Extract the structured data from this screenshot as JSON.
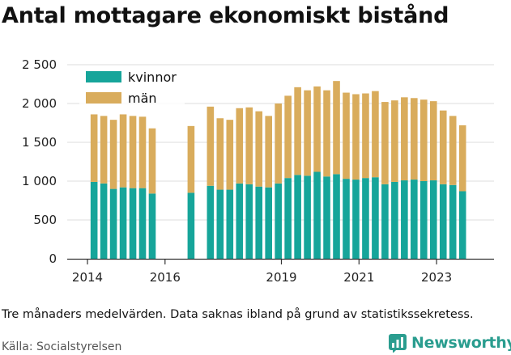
{
  "title": "Antal mottagare ekonomiskt bistånd",
  "note": "Tre månaders medelvärden. Data saknas ibland på grund av statistikssekretess.",
  "source": "Källa: Socialstyrelsen",
  "brand": "Newsworthy",
  "colors": {
    "kvinnor": "#16a59a",
    "man": "#d9ac5c",
    "axis": "#333333",
    "grid": "#dddddd"
  },
  "chart_data": {
    "type": "bar",
    "stacked": true,
    "title": "Antal mottagare ekonomiskt bistånd",
    "xlabel": "",
    "ylabel": "",
    "ylim": [
      0,
      2500
    ],
    "yticks": [
      0,
      500,
      1000,
      1500,
      2000,
      2500
    ],
    "ytick_labels": [
      "0",
      "500",
      "1 000",
      "1 500",
      "2 000",
      "2 500"
    ],
    "xticks": [
      2014,
      2016,
      2019,
      2021,
      2023
    ],
    "legend_position": "top-left",
    "x": [
      2014.17,
      2014.42,
      2014.67,
      2014.92,
      2015.17,
      2015.42,
      2015.67,
      2015.92,
      2016.17,
      2016.42,
      2016.67,
      2016.92,
      2017.17,
      2017.42,
      2017.67,
      2017.92,
      2018.17,
      2018.42,
      2018.67,
      2018.92,
      2019.17,
      2019.42,
      2019.67,
      2019.92,
      2020.17,
      2020.42,
      2020.67,
      2020.92,
      2021.17,
      2021.42,
      2021.67,
      2021.92,
      2022.17,
      2022.42,
      2022.67,
      2022.92,
      2023.17,
      2023.42,
      2023.67,
      2023.92
    ],
    "series": [
      {
        "name": "kvinnor",
        "values": [
          990,
          970,
          900,
          920,
          910,
          910,
          840,
          null,
          null,
          null,
          850,
          null,
          940,
          890,
          890,
          970,
          960,
          930,
          920,
          970,
          1040,
          1080,
          1070,
          1120,
          1060,
          1090,
          1030,
          1020,
          1040,
          1050,
          960,
          990,
          1010,
          1020,
          1000,
          1010,
          960,
          950,
          870,
          null
        ]
      },
      {
        "name": "män",
        "values": [
          870,
          870,
          890,
          940,
          930,
          920,
          840,
          null,
          null,
          null,
          860,
          null,
          1020,
          920,
          900,
          970,
          990,
          970,
          920,
          1030,
          1060,
          1130,
          1100,
          1100,
          1110,
          1200,
          1110,
          1100,
          1090,
          1110,
          1060,
          1050,
          1070,
          1050,
          1050,
          1020,
          950,
          890,
          850,
          null
        ]
      }
    ],
    "legend": [
      "kvinnor",
      "män"
    ]
  }
}
